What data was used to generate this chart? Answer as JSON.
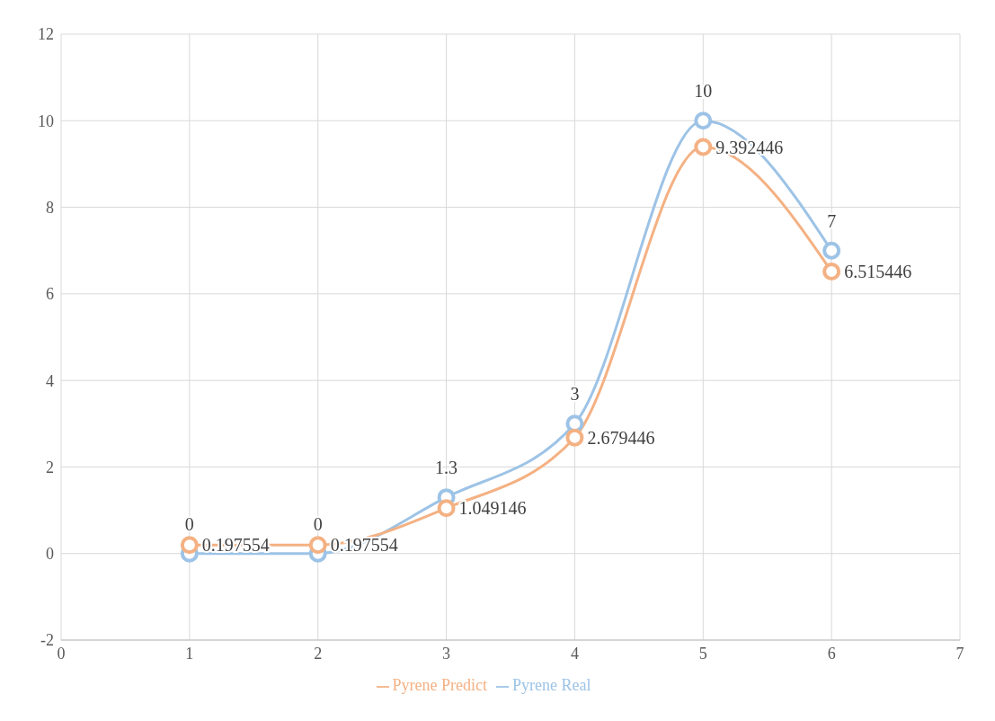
{
  "chart_data": {
    "type": "line",
    "x": [
      1,
      2,
      3,
      4,
      5,
      6
    ],
    "series": [
      {
        "name": "Pyrene Real",
        "color": "#9dc3e6",
        "values": [
          0,
          0,
          1.3,
          3,
          10,
          7
        ]
      },
      {
        "name": "Pyrene Predict",
        "color": "#f4b183",
        "values": [
          0.197554,
          0.197554,
          1.049146,
          2.679446,
          9.392446,
          6.515446
        ]
      }
    ],
    "xlim": [
      0,
      7
    ],
    "xticks": [
      0,
      1,
      2,
      3,
      4,
      5,
      6,
      7
    ],
    "ylim": [
      -2,
      12
    ],
    "yticks": [
      -2,
      0,
      2,
      4,
      6,
      8,
      10,
      12
    ],
    "grid": true,
    "legend": "bottom",
    "marker": "circle",
    "line_style": "solid",
    "data_labels": true
  }
}
